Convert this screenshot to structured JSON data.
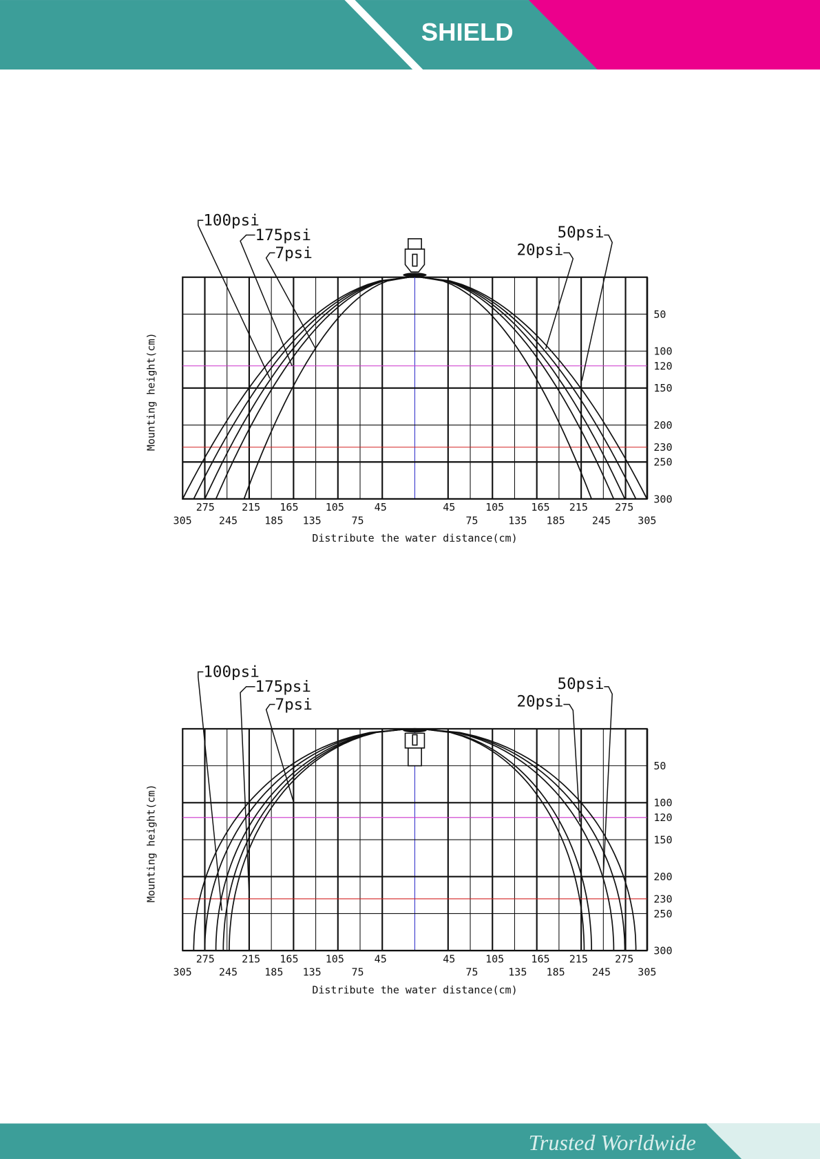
{
  "header": {
    "brand": "SHIELD"
  },
  "diagrams": [
    {
      "pressure_labels": [
        "100psi",
        "175psi",
        "7psi",
        "50psi",
        "20psi"
      ],
      "y_axis_label": "Mounting height(cm)",
      "x_axis_label": "Distribute the water distance(cm)",
      "y_ticks": [
        50,
        100,
        120,
        150,
        200,
        230,
        250,
        300
      ],
      "x_ticks_left_upper": [
        275,
        215,
        165,
        105,
        45
      ],
      "x_ticks_left_lower": [
        305,
        245,
        185,
        135,
        75
      ],
      "x_ticks_right_upper": [
        45,
        105,
        165,
        215,
        275
      ],
      "x_ticks_right_lower": [
        75,
        135,
        185,
        245,
        305
      ]
    },
    {
      "pressure_labels": [
        "100psi",
        "175psi",
        "7psi",
        "50psi",
        "20psi"
      ],
      "y_axis_label": "Mounting height(cm)",
      "x_axis_label": "Distribute the water distance(cm)",
      "y_ticks": [
        50,
        100,
        120,
        150,
        200,
        230,
        250,
        300
      ],
      "x_ticks_left_upper": [
        275,
        215,
        165,
        105,
        45
      ],
      "x_ticks_left_lower": [
        305,
        245,
        185,
        135,
        75
      ],
      "x_ticks_right_upper": [
        45,
        105,
        165,
        215,
        275
      ],
      "x_ticks_right_lower": [
        75,
        135,
        185,
        245,
        305
      ]
    }
  ],
  "footer": {
    "tagline": "Trusted Worldwide"
  }
}
